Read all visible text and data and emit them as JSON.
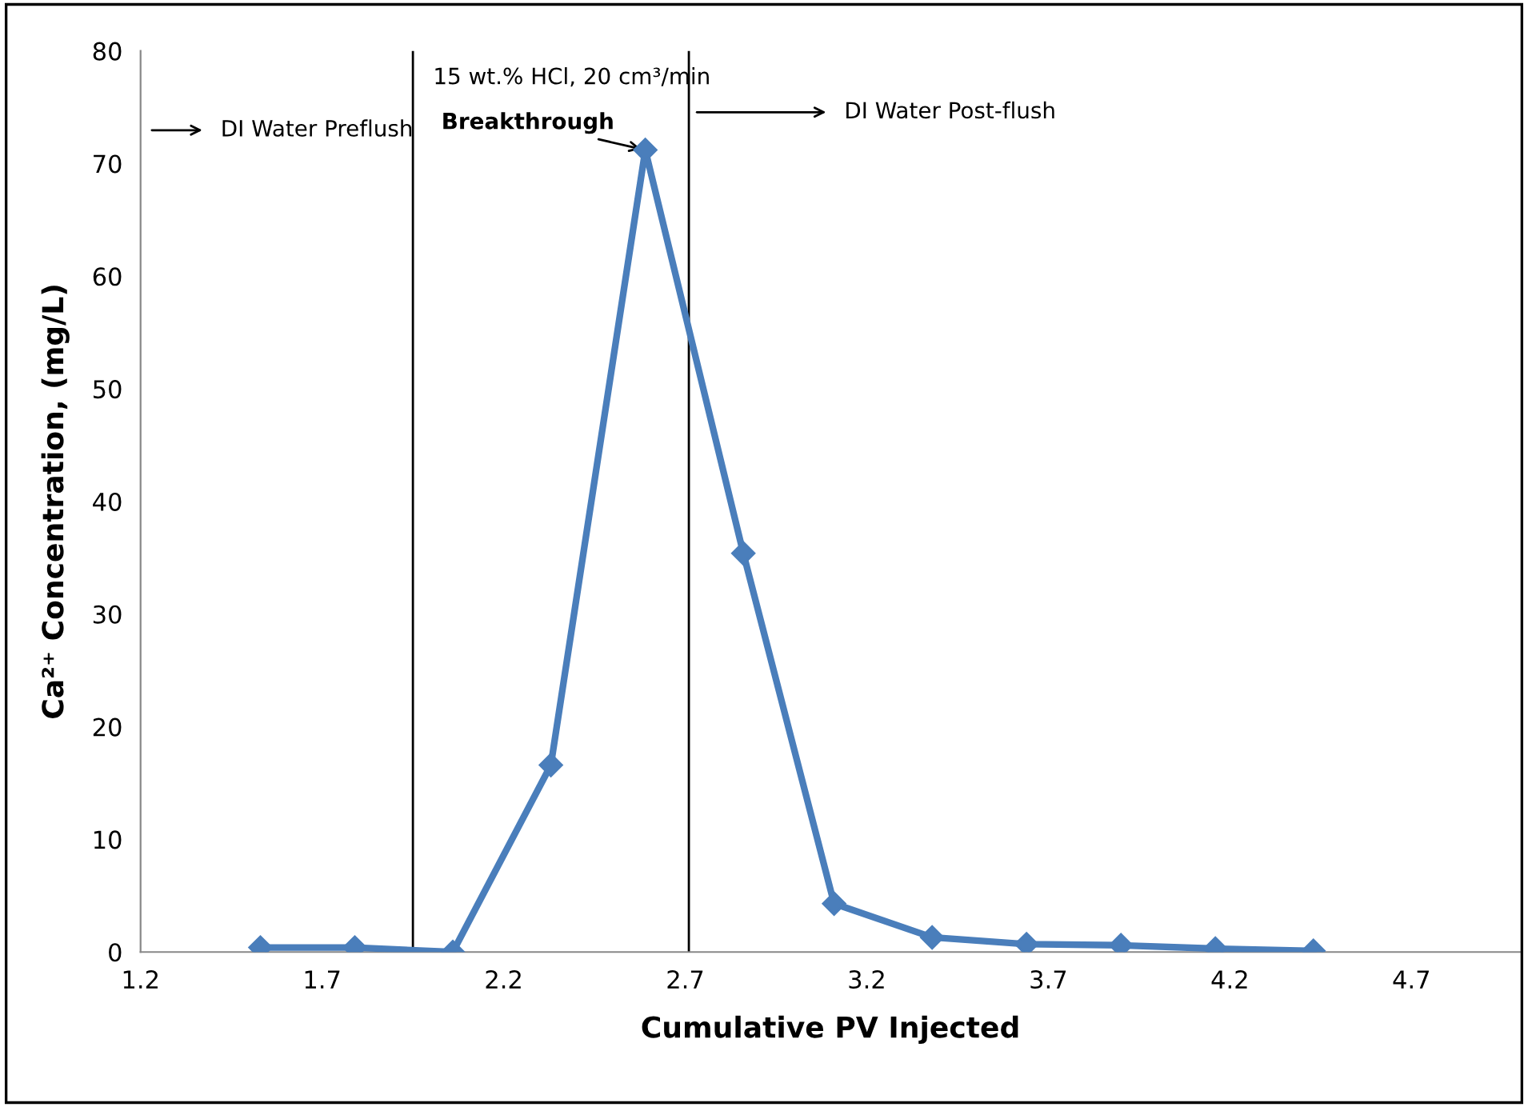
{
  "chart_data": {
    "type": "line",
    "xlabel": "Cumulative PV Injected",
    "ylabel": "Ca²⁺ Concentration, (mg/L)",
    "x": [
      1.53,
      1.79,
      2.06,
      2.33,
      2.59,
      2.86,
      3.11,
      3.38,
      3.64,
      3.9,
      4.16,
      4.43
    ],
    "series": [
      {
        "color": "#4a7ebb",
        "values": [
          0.4,
          0.4,
          0,
          16.6,
          71.2,
          35.4,
          4.3,
          1.3,
          0.7,
          0.6,
          0.3,
          0.1
        ]
      }
    ],
    "xlim": [
      1.2,
      5.0
    ],
    "xticks": [
      1.2,
      1.7,
      2.2,
      2.7,
      3.2,
      3.7,
      4.2,
      4.7
    ],
    "ylim": [
      0,
      80
    ],
    "yticks": [
      0,
      10,
      20,
      30,
      40,
      50,
      60,
      70,
      80
    ],
    "marker": "diamond",
    "line_style": "solid",
    "grid": false,
    "legend": false,
    "ref_lines": [
      {
        "axis": "x",
        "value": 1.95,
        "color": "#000000"
      },
      {
        "axis": "x",
        "value": 2.71,
        "color": "#000000"
      }
    ],
    "annotations": [
      "15 wt.% HCl, 20 cm³/min",
      "DI Water Preflush",
      "DI Water Post-flush",
      {
        "text": "Breakthrough",
        "x": 2.59,
        "y": 71.2
      }
    ]
  }
}
